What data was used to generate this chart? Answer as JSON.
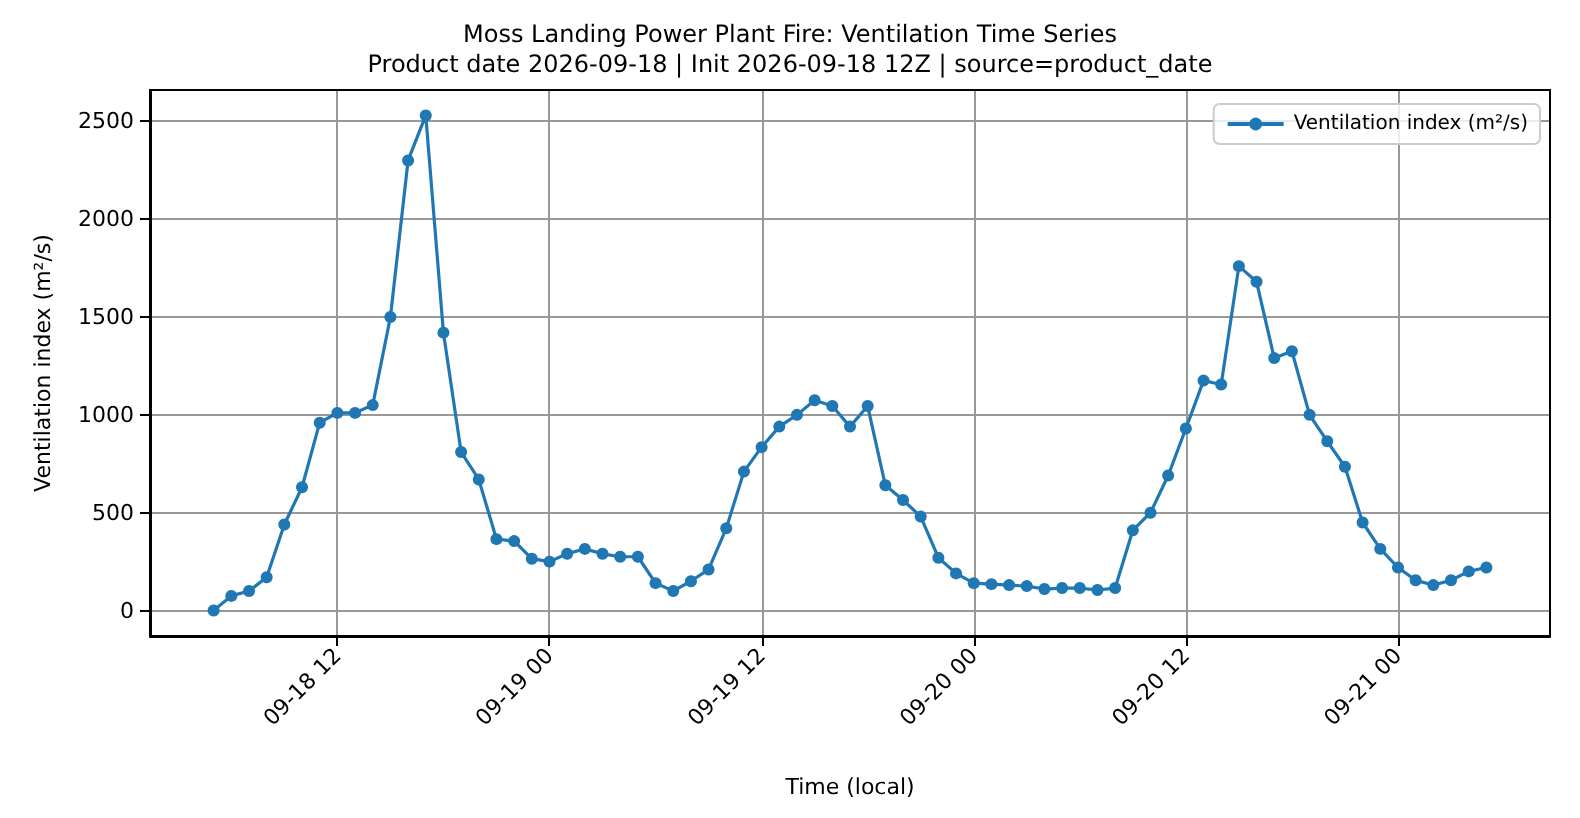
{
  "chart_data": {
    "type": "line",
    "title": "Moss Landing Power Plant Fire: Ventilation Time Series",
    "subtitle": "Product date 2026-09-18 | Init 2026-09-18 12Z | source=product_date",
    "xlabel": "Time (local)",
    "ylabel": "Ventilation index (m²/s)",
    "x": [
      "2026-09-18T05:00",
      "2026-09-18T06:00",
      "2026-09-18T07:00",
      "2026-09-18T08:00",
      "2026-09-18T09:00",
      "2026-09-18T10:00",
      "2026-09-18T11:00",
      "2026-09-18T12:00",
      "2026-09-18T13:00",
      "2026-09-18T14:00",
      "2026-09-18T15:00",
      "2026-09-18T16:00",
      "2026-09-18T17:00",
      "2026-09-18T18:00",
      "2026-09-18T19:00",
      "2026-09-18T20:00",
      "2026-09-18T21:00",
      "2026-09-18T22:00",
      "2026-09-18T23:00",
      "2026-09-19T00:00",
      "2026-09-19T01:00",
      "2026-09-19T02:00",
      "2026-09-19T03:00",
      "2026-09-19T04:00",
      "2026-09-19T05:00",
      "2026-09-19T06:00",
      "2026-09-19T07:00",
      "2026-09-19T08:00",
      "2026-09-19T09:00",
      "2026-09-19T10:00",
      "2026-09-19T11:00",
      "2026-09-19T12:00",
      "2026-09-19T13:00",
      "2026-09-19T14:00",
      "2026-09-19T15:00",
      "2026-09-19T16:00",
      "2026-09-19T17:00",
      "2026-09-19T18:00",
      "2026-09-19T19:00",
      "2026-09-19T20:00",
      "2026-09-19T21:00",
      "2026-09-19T22:00",
      "2026-09-19T23:00",
      "2026-09-20T00:00",
      "2026-09-20T01:00",
      "2026-09-20T02:00",
      "2026-09-20T03:00",
      "2026-09-20T04:00",
      "2026-09-20T05:00",
      "2026-09-20T06:00",
      "2026-09-20T07:00",
      "2026-09-20T08:00",
      "2026-09-20T09:00",
      "2026-09-20T10:00",
      "2026-09-20T11:00",
      "2026-09-20T12:00",
      "2026-09-20T13:00",
      "2026-09-20T14:00",
      "2026-09-20T15:00",
      "2026-09-20T16:00",
      "2026-09-20T17:00",
      "2026-09-20T18:00",
      "2026-09-20T19:00",
      "2026-09-20T20:00",
      "2026-09-20T21:00",
      "2026-09-20T22:00",
      "2026-09-20T23:00",
      "2026-09-21T00:00",
      "2026-09-21T01:00",
      "2026-09-21T02:00",
      "2026-09-21T03:00",
      "2026-09-21T04:00",
      "2026-09-21T05:00"
    ],
    "series": [
      {
        "name": "Ventilation index (m²/s)",
        "color": "#1f77b4",
        "values": [
          0,
          75,
          100,
          170,
          440,
          630,
          960,
          1010,
          1010,
          1050,
          1500,
          2300,
          2530,
          1420,
          810,
          670,
          365,
          355,
          265,
          250,
          290,
          315,
          290,
          275,
          275,
          140,
          100,
          150,
          210,
          420,
          710,
          835,
          940,
          1000,
          1075,
          1045,
          940,
          1045,
          640,
          565,
          480,
          270,
          190,
          140,
          135,
          130,
          125,
          110,
          115,
          115,
          105,
          115,
          410,
          500,
          690,
          930,
          1175,
          1155,
          1760,
          1680,
          1290,
          1325,
          1000,
          865,
          735,
          450,
          315,
          220,
          155,
          130,
          155,
          200,
          220
        ]
      }
    ],
    "xlim": [
      "2026-09-18T01:24",
      "2026-09-21T08:36"
    ],
    "xticks": [
      {
        "value": "2026-09-18T12:00",
        "label": "09-18 12"
      },
      {
        "value": "2026-09-19T00:00",
        "label": "09-19 00"
      },
      {
        "value": "2026-09-19T12:00",
        "label": "09-19 12"
      },
      {
        "value": "2026-09-20T00:00",
        "label": "09-20 00"
      },
      {
        "value": "2026-09-20T12:00",
        "label": "09-20 12"
      },
      {
        "value": "2026-09-21T00:00",
        "label": "09-21 00"
      }
    ],
    "ylim": [
      -130,
      2660
    ],
    "yticks": [
      0,
      500,
      1000,
      1500,
      2000,
      2500
    ],
    "grid": true,
    "legend": "top right",
    "marker": "circle",
    "line_style": "solid"
  }
}
